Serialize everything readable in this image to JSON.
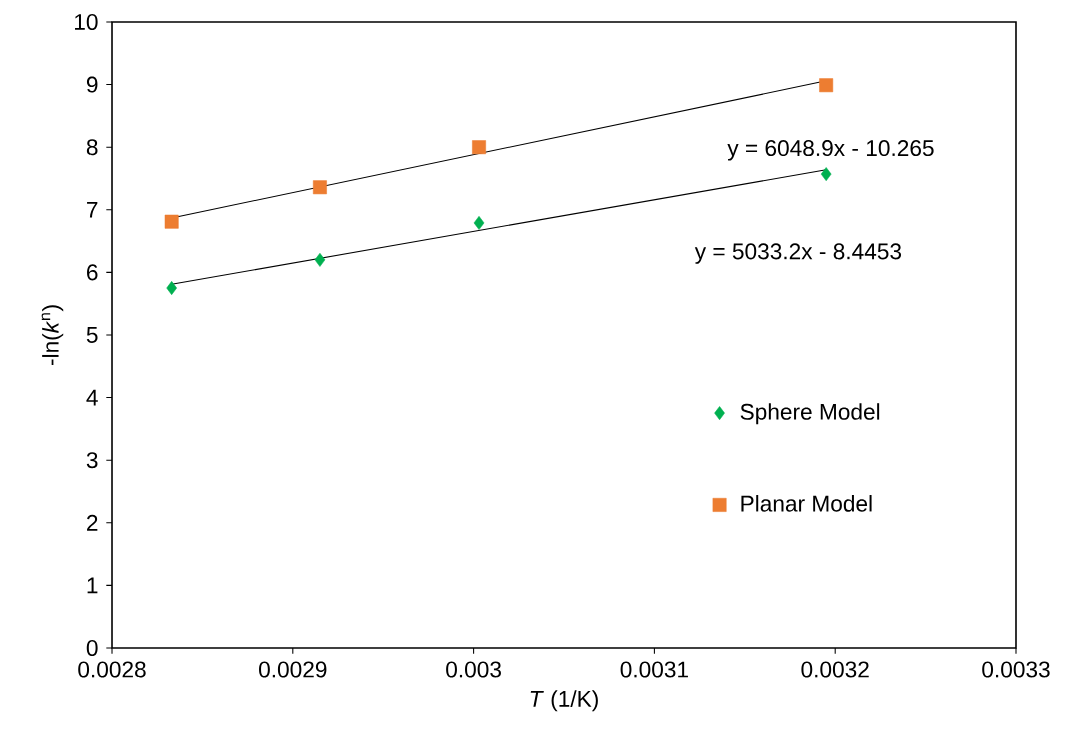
{
  "chart_data": {
    "type": "scatter",
    "xlabel": "*T* (1/K)",
    "ylabel": "-ln(*k*$^{n}$)",
    "xlim": [
      0.0028,
      0.0033
    ],
    "xticks": [
      0.0028,
      0.0029,
      0.003,
      0.0031,
      0.0032,
      0.0033
    ],
    "ylim": [
      0,
      10
    ],
    "yticks": [
      0,
      1,
      2,
      3,
      4,
      5,
      6,
      7,
      8,
      9,
      10
    ],
    "grid": false,
    "legend": "right",
    "annotations": [
      "y = 6048.9x - 10.265",
      "y = 5033.2x - 8.4453"
    ],
    "series": [
      {
        "name": "Sphere Model",
        "marker": "diamond",
        "color": "#00b050",
        "x": [
          0.002833,
          0.002915,
          0.003003,
          0.003195
        ],
        "values": [
          5.75,
          6.2,
          6.79,
          7.57
        ]
      },
      {
        "name": "Planar Model",
        "marker": "square",
        "color": "#ed7d31",
        "x": [
          0.002833,
          0.002915,
          0.003003,
          0.003195
        ],
        "values": [
          6.81,
          7.36,
          8.0,
          8.99
        ]
      },
      {
        "type": "line",
        "marker": "none",
        "color": "#000000",
        "x": [
          0.002833,
          0.003195
        ],
        "values": [
          6.87,
          9.06
        ]
      },
      {
        "type": "line",
        "marker": "none",
        "color": "#000000",
        "x": [
          0.002833,
          0.003195
        ],
        "values": [
          5.81,
          7.64
        ]
      }
    ]
  }
}
